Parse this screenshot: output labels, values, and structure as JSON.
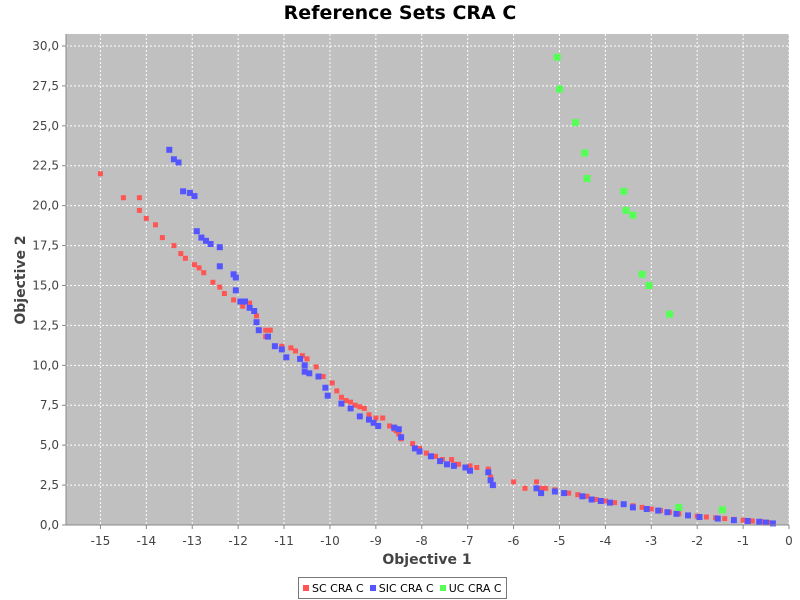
{
  "chart_data": {
    "type": "scatter",
    "title": "Reference Sets CRA C",
    "xlabel": "Objective 1",
    "ylabel": "Objective 2",
    "xlim": [
      -15.75,
      0
    ],
    "ylim": [
      0,
      30.75
    ],
    "xticks": [
      "-15",
      "-14",
      "-13",
      "-12",
      "-11",
      "-10",
      "-9",
      "-8",
      "-7",
      "-6",
      "-5",
      "-4",
      "-3",
      "-2",
      "-1",
      "0"
    ],
    "yticks": [
      "0,0",
      "2,5",
      "5,0",
      "7,5",
      "10,0",
      "12,5",
      "15,0",
      "17,5",
      "20,0",
      "22,5",
      "25,0",
      "27,5",
      "30,0"
    ],
    "grid": true,
    "legend_position": "bottom",
    "series": [
      {
        "name": "SC CRA C",
        "color": "#ff5555",
        "points": [
          [
            -15.0,
            22.0
          ],
          [
            -14.5,
            20.5
          ],
          [
            -14.15,
            20.5
          ],
          [
            -14.15,
            19.7
          ],
          [
            -14.0,
            19.2
          ],
          [
            -13.8,
            18.8
          ],
          [
            -13.65,
            18.0
          ],
          [
            -13.4,
            17.5
          ],
          [
            -13.25,
            17.0
          ],
          [
            -13.15,
            16.7
          ],
          [
            -12.95,
            16.3
          ],
          [
            -12.85,
            16.1
          ],
          [
            -12.75,
            15.8
          ],
          [
            -12.55,
            15.2
          ],
          [
            -12.4,
            14.9
          ],
          [
            -12.3,
            14.5
          ],
          [
            -12.1,
            14.1
          ],
          [
            -11.9,
            13.7
          ],
          [
            -11.75,
            13.9
          ],
          [
            -11.6,
            13.1
          ],
          [
            -11.4,
            12.2
          ],
          [
            -11.4,
            11.8
          ],
          [
            -11.3,
            12.2
          ],
          [
            -11.05,
            11.2
          ],
          [
            -10.85,
            11.1
          ],
          [
            -10.75,
            10.9
          ],
          [
            -10.6,
            10.6
          ],
          [
            -10.5,
            10.4
          ],
          [
            -10.3,
            9.9
          ],
          [
            -10.15,
            9.3
          ],
          [
            -9.95,
            8.9
          ],
          [
            -9.85,
            8.4
          ],
          [
            -9.75,
            8.0
          ],
          [
            -9.65,
            7.8
          ],
          [
            -9.55,
            7.7
          ],
          [
            -9.45,
            7.5
          ],
          [
            -9.35,
            7.4
          ],
          [
            -9.25,
            7.3
          ],
          [
            -9.15,
            6.9
          ],
          [
            -9.0,
            6.7
          ],
          [
            -8.85,
            6.7
          ],
          [
            -8.7,
            6.2
          ],
          [
            -8.6,
            6.0
          ],
          [
            -8.55,
            5.9
          ],
          [
            -8.5,
            5.7
          ],
          [
            -8.45,
            5.4
          ],
          [
            -8.2,
            5.1
          ],
          [
            -8.05,
            4.8
          ],
          [
            -7.9,
            4.5
          ],
          [
            -7.7,
            4.3
          ],
          [
            -7.55,
            4.1
          ],
          [
            -7.35,
            4.1
          ],
          [
            -7.3,
            3.8
          ],
          [
            -7.2,
            3.8
          ],
          [
            -6.95,
            3.7
          ],
          [
            -6.8,
            3.6
          ],
          [
            -6.55,
            3.5
          ],
          [
            -6.5,
            3.0
          ],
          [
            -6.0,
            2.7
          ],
          [
            -5.75,
            2.3
          ],
          [
            -5.5,
            2.7
          ],
          [
            -5.4,
            2.3
          ],
          [
            -5.3,
            2.3
          ],
          [
            -5.1,
            2.2
          ],
          [
            -4.8,
            2.0
          ],
          [
            -4.6,
            1.9
          ],
          [
            -4.4,
            1.8
          ],
          [
            -4.2,
            1.6
          ],
          [
            -4.0,
            1.5
          ],
          [
            -3.8,
            1.4
          ],
          [
            -3.6,
            1.3
          ],
          [
            -3.4,
            1.2
          ],
          [
            -3.2,
            1.1
          ],
          [
            -3.0,
            1.0
          ],
          [
            -2.8,
            0.9
          ],
          [
            -2.6,
            0.8
          ],
          [
            -2.4,
            0.7
          ],
          [
            -2.2,
            0.6
          ],
          [
            -2.0,
            0.55
          ],
          [
            -1.8,
            0.5
          ],
          [
            -1.6,
            0.45
          ],
          [
            -1.4,
            0.4
          ],
          [
            -1.2,
            0.35
          ],
          [
            -1.0,
            0.3
          ],
          [
            -0.8,
            0.25
          ],
          [
            -0.6,
            0.2
          ],
          [
            -0.45,
            0.15
          ],
          [
            -0.35,
            0.1
          ]
        ]
      },
      {
        "name": "SIC CRA C",
        "color": "#5555ff",
        "points": [
          [
            -13.5,
            23.5
          ],
          [
            -13.4,
            22.9
          ],
          [
            -13.3,
            22.7
          ],
          [
            -13.2,
            20.9
          ],
          [
            -13.05,
            20.8
          ],
          [
            -12.95,
            20.6
          ],
          [
            -12.9,
            18.4
          ],
          [
            -12.8,
            18.0
          ],
          [
            -12.7,
            17.8
          ],
          [
            -12.6,
            17.6
          ],
          [
            -12.4,
            17.4
          ],
          [
            -12.4,
            16.2
          ],
          [
            -12.1,
            15.7
          ],
          [
            -12.05,
            15.5
          ],
          [
            -12.05,
            14.7
          ],
          [
            -11.95,
            14.0
          ],
          [
            -11.85,
            14.0
          ],
          [
            -11.75,
            13.6
          ],
          [
            -11.65,
            13.4
          ],
          [
            -11.6,
            12.7
          ],
          [
            -11.55,
            12.2
          ],
          [
            -11.35,
            11.8
          ],
          [
            -11.2,
            11.2
          ],
          [
            -11.05,
            11.0
          ],
          [
            -10.95,
            10.5
          ],
          [
            -10.65,
            10.4
          ],
          [
            -10.55,
            10.0
          ],
          [
            -10.55,
            9.6
          ],
          [
            -10.45,
            9.5
          ],
          [
            -10.25,
            9.3
          ],
          [
            -10.1,
            8.6
          ],
          [
            -10.05,
            8.1
          ],
          [
            -9.75,
            7.6
          ],
          [
            -9.55,
            7.3
          ],
          [
            -9.35,
            6.8
          ],
          [
            -9.15,
            6.6
          ],
          [
            -9.05,
            6.4
          ],
          [
            -8.95,
            6.2
          ],
          [
            -8.6,
            6.1
          ],
          [
            -8.5,
            6.0
          ],
          [
            -8.45,
            5.5
          ],
          [
            -8.15,
            4.8
          ],
          [
            -8.05,
            4.6
          ],
          [
            -7.8,
            4.3
          ],
          [
            -7.6,
            4.0
          ],
          [
            -7.45,
            3.8
          ],
          [
            -7.3,
            3.7
          ],
          [
            -7.05,
            3.6
          ],
          [
            -6.95,
            3.4
          ],
          [
            -6.55,
            3.3
          ],
          [
            -6.5,
            2.8
          ],
          [
            -6.45,
            2.5
          ],
          [
            -5.5,
            2.3
          ],
          [
            -5.4,
            2.0
          ],
          [
            -5.1,
            2.1
          ],
          [
            -4.9,
            2.0
          ],
          [
            -4.5,
            1.8
          ],
          [
            -4.3,
            1.6
          ],
          [
            -4.1,
            1.5
          ],
          [
            -3.9,
            1.4
          ],
          [
            -3.6,
            1.3
          ],
          [
            -3.4,
            1.1
          ],
          [
            -3.1,
            1.0
          ],
          [
            -2.85,
            0.9
          ],
          [
            -2.65,
            0.8
          ],
          [
            -2.45,
            0.7
          ],
          [
            -2.2,
            0.6
          ],
          [
            -1.95,
            0.5
          ],
          [
            -1.55,
            0.4
          ],
          [
            -1.2,
            0.3
          ],
          [
            -0.9,
            0.25
          ],
          [
            -0.65,
            0.2
          ],
          [
            -0.5,
            0.15
          ],
          [
            -0.35,
            0.1
          ]
        ]
      },
      {
        "name": "UC CRA C",
        "color": "#55ff55",
        "points": [
          [
            -5.05,
            29.3
          ],
          [
            -5.0,
            27.3
          ],
          [
            -4.65,
            25.2
          ],
          [
            -4.45,
            23.3
          ],
          [
            -4.4,
            21.7
          ],
          [
            -3.6,
            20.9
          ],
          [
            -3.55,
            19.7
          ],
          [
            -3.4,
            19.4
          ],
          [
            -3.2,
            15.7
          ],
          [
            -3.05,
            15.0
          ],
          [
            -2.6,
            13.2
          ],
          [
            -2.4,
            1.1
          ],
          [
            -1.45,
            0.95
          ]
        ]
      }
    ]
  }
}
